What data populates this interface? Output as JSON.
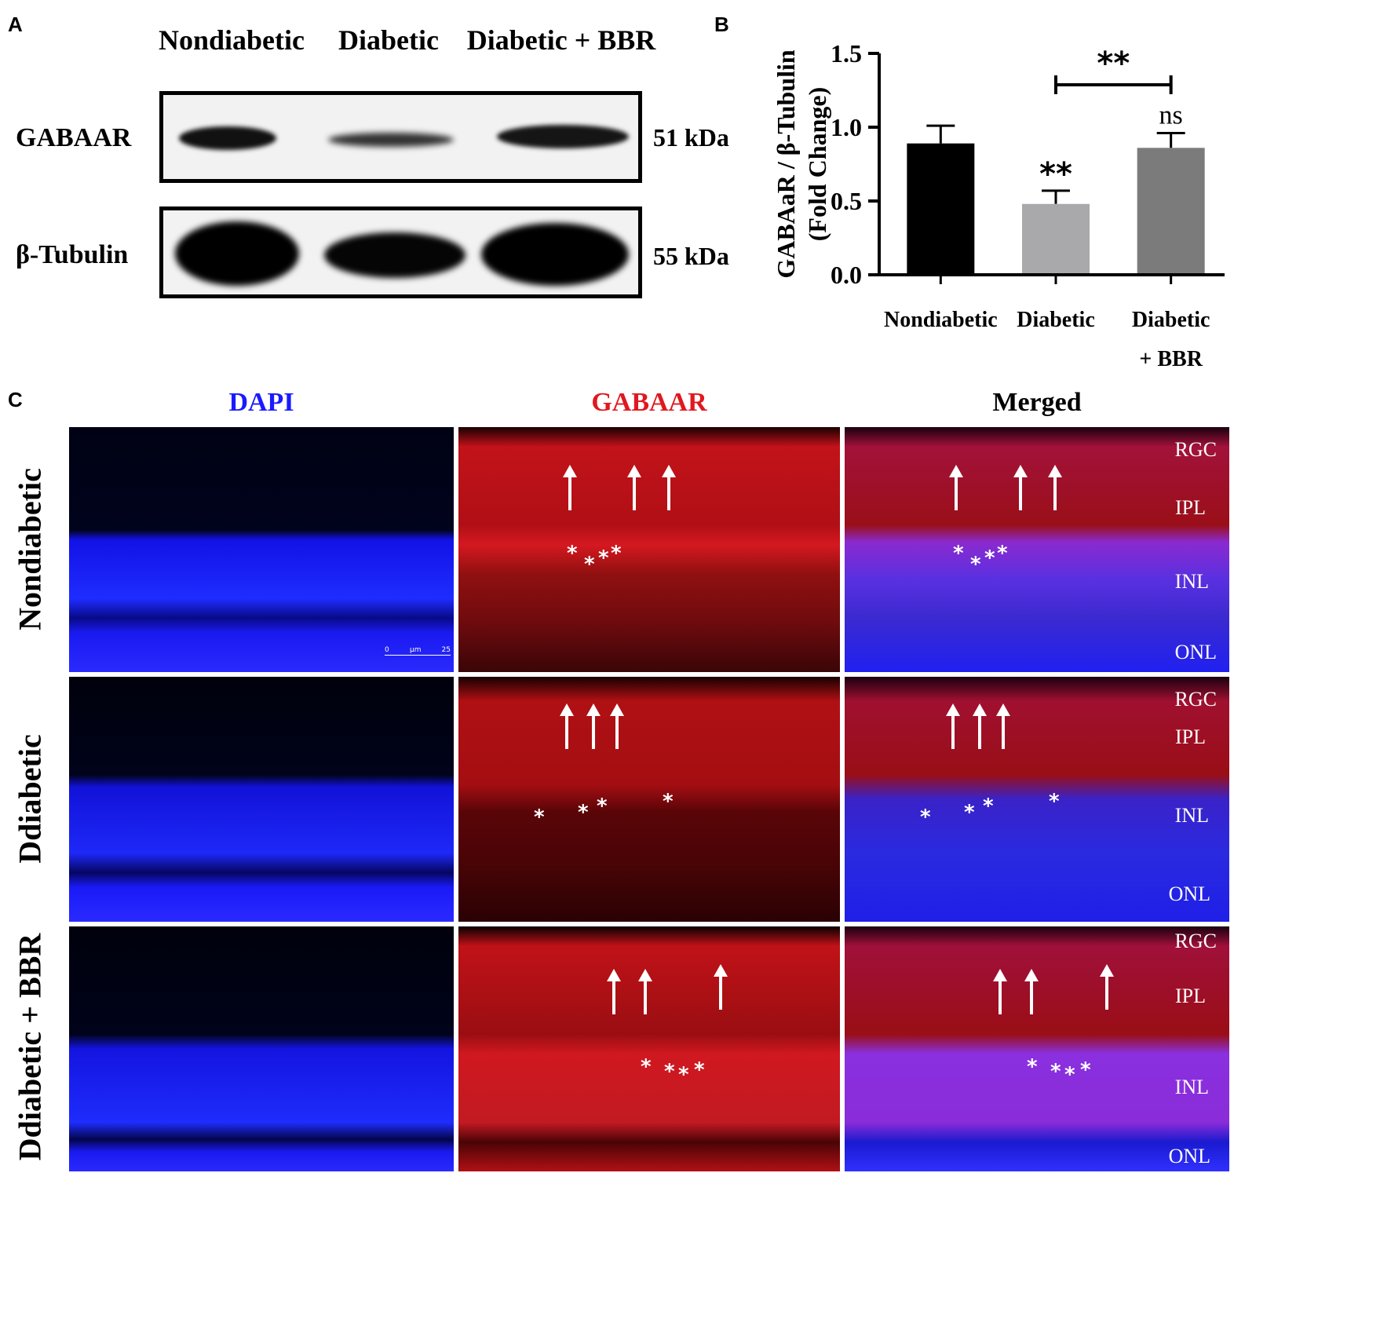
{
  "panels": {
    "a": "A",
    "b": "B",
    "c": "C"
  },
  "western_blot": {
    "lanes": [
      "Nondiabetic",
      "Diabetic",
      "Diabetic + BBR"
    ],
    "rows": [
      {
        "label": "GABAAR",
        "kda": "51 kDa"
      },
      {
        "label": "β-Tubulin",
        "kda": "55 kDa"
      }
    ]
  },
  "chart_data": {
    "type": "bar",
    "categories": [
      "Nondiabetic",
      "Diabetic",
      "Diabetic + BBR"
    ],
    "category_lines": [
      [
        "Nondiabetic"
      ],
      [
        "Diabetic"
      ],
      [
        "Diabetic",
        "+ BBR"
      ]
    ],
    "values": [
      0.89,
      0.48,
      0.86
    ],
    "errors": [
      0.12,
      0.09,
      0.1
    ],
    "bar_colors": [
      "#000000",
      "#a9a9ab",
      "#7b7b7b"
    ],
    "ylabel_lines": [
      "GABAaR / β-Tubulin",
      "(Fold Change)"
    ],
    "ylim": [
      0,
      1.5
    ],
    "yticks": [
      "0.0",
      "0.5",
      "1.0",
      "1.5"
    ],
    "annotations": {
      "diabetic_sig": "**",
      "bbr_sig": "ns",
      "bracket_sig": "**"
    }
  },
  "microscopy": {
    "columns": [
      {
        "label": "DAPI",
        "color": "#1a1aff"
      },
      {
        "label": "GABAAR",
        "color": "#e0181f"
      },
      {
        "label": "Merged",
        "color": "#000000"
      }
    ],
    "rows": [
      "Nondiabetic",
      "Ddiabetic",
      "Ddiabetic + BBR"
    ],
    "layers": [
      "RGC",
      "IPL",
      "INL",
      "ONL"
    ],
    "scale_bar": {
      "start": "0",
      "unit": "µm",
      "end": "25"
    },
    "star": "*"
  }
}
